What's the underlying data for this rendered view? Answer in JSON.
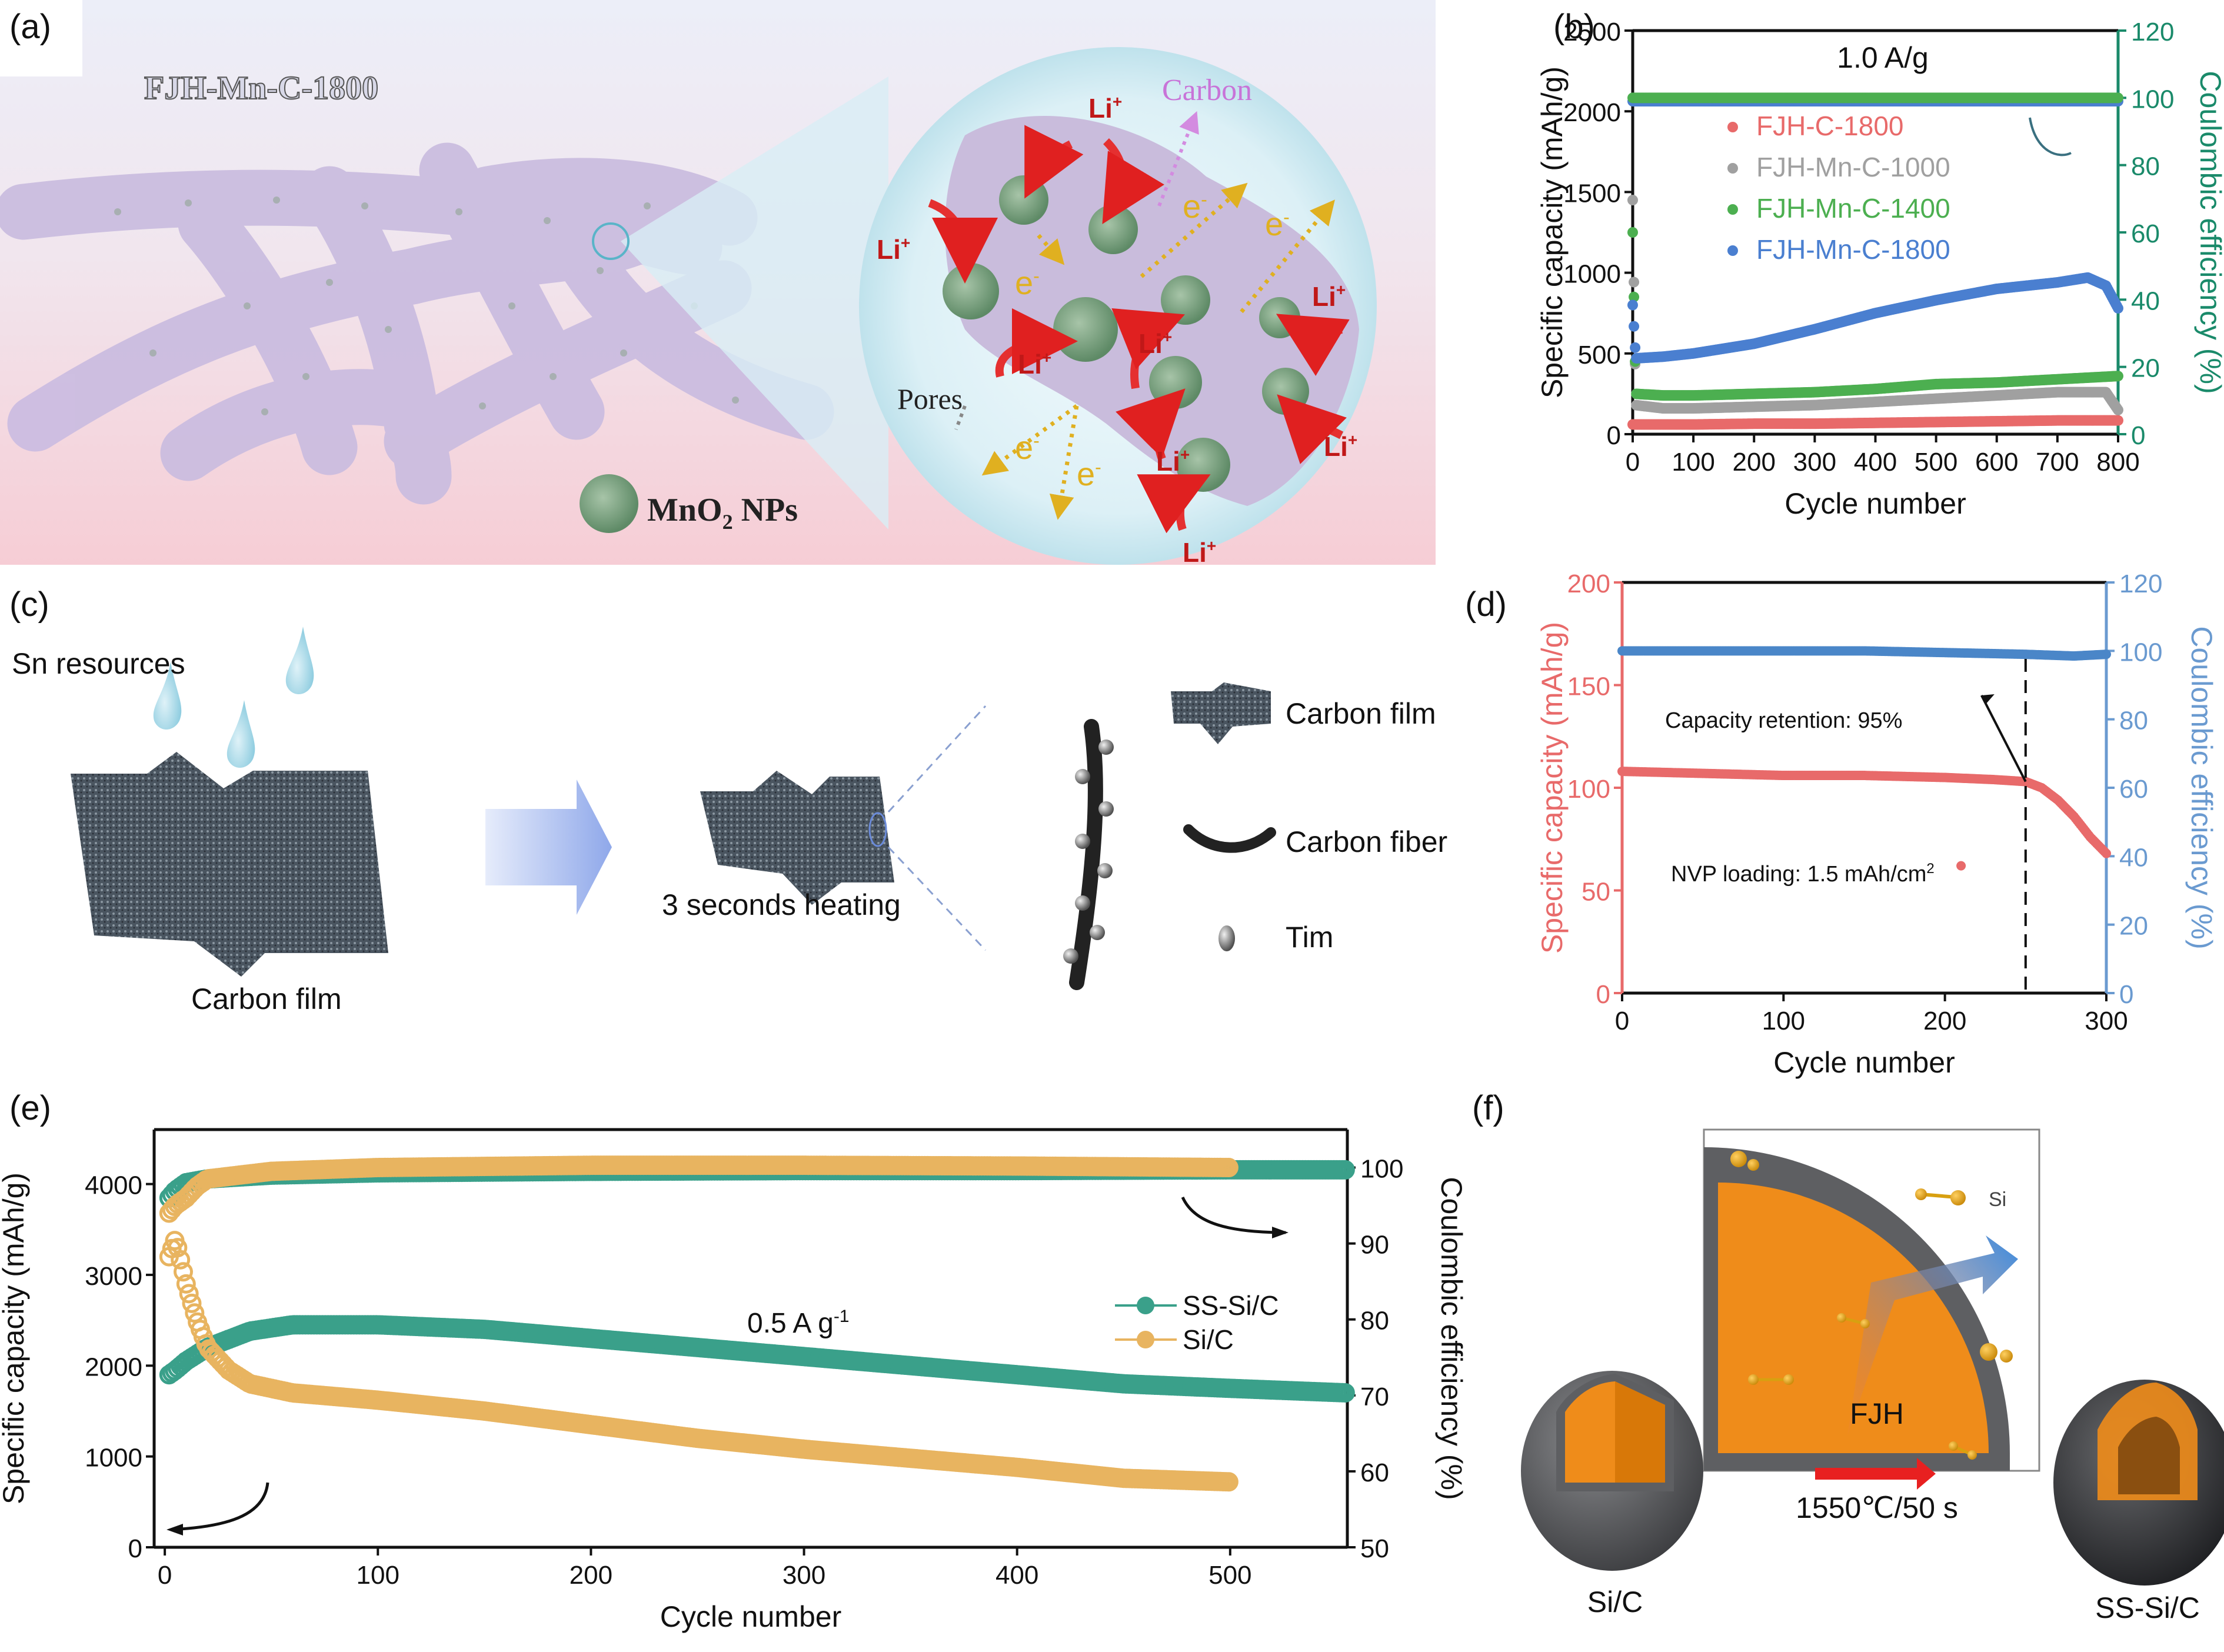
{
  "panels": {
    "a": {
      "label": "(a)",
      "title": "FJH-Mn-C-1800",
      "legend": "MnO",
      "legend_sub": "2",
      "legend_tail": " NPs",
      "inset_labels": {
        "carbon": "Carbon",
        "pores": "Pores",
        "li": "Li",
        "li_sup": "+",
        "e": "e",
        "e_sup": "-"
      },
      "colors": {
        "fiber": "#cdbfe2",
        "np": "#7fa585",
        "li_arrow": "#e02020",
        "e_arrow": "#e0b020",
        "bg_top": "#eef0f8",
        "bg_bottom": "#f7cfd6",
        "inset": "#d6eef4"
      }
    },
    "b": {
      "label": "(b)"
    },
    "c": {
      "label": "(c)",
      "sn_resources": "Sn resources",
      "carbon_film_bottom": "Carbon film",
      "heating": "3 seconds heating",
      "legend": [
        {
          "icon": "carbon-film",
          "text": "Carbon film"
        },
        {
          "icon": "carbon-fiber",
          "text": "Carbon fiber"
        },
        {
          "icon": "tin-particle",
          "text": "Tim"
        }
      ]
    },
    "d": {
      "label": "(d)"
    },
    "e": {
      "label": "(e)"
    },
    "f": {
      "label": "(f)",
      "si_label": "Si",
      "left_sphere": "Si/C",
      "right_sphere": "SS-Si/C",
      "arrow_top": "FJH",
      "arrow_bottom": "1550℃/50 s",
      "colors": {
        "core": "#f08c1a",
        "shell": "#5a5b5e",
        "arrow": "#e82020",
        "si": "#e8a818"
      }
    }
  },
  "chart_data": [
    {
      "id": "b",
      "type": "scatter",
      "title": "",
      "annotation": "1.0 A/g",
      "xlabel": "Cycle number",
      "ylabel": "Specific capacity (mAh/g)",
      "y2label": "Coulombic efficiency (%)",
      "xlim": [
        0,
        800
      ],
      "ylim": [
        0,
        2500
      ],
      "y2lim": [
        0,
        120
      ],
      "xticks": [
        0,
        100,
        200,
        300,
        400,
        500,
        600,
        700,
        800
      ],
      "yticks": [
        0,
        500,
        1000,
        1500,
        2000,
        2500
      ],
      "y2ticks": [
        0,
        20,
        40,
        60,
        80,
        100,
        120
      ],
      "legend_position": "upper-left",
      "series": [
        {
          "name": "FJH-C-1800",
          "color": "#e86a6a",
          "axis": "left",
          "x": [
            0,
            100,
            200,
            300,
            400,
            500,
            600,
            700,
            800
          ],
          "y": [
            60,
            60,
            65,
            65,
            70,
            75,
            80,
            85,
            85
          ]
        },
        {
          "name": "FJH-Mn-C-1000",
          "color": "#a0a0a0",
          "axis": "left",
          "x": [
            0,
            5,
            50,
            100,
            200,
            300,
            400,
            500,
            600,
            700,
            780,
            800
          ],
          "y": [
            1450,
            180,
            160,
            160,
            170,
            180,
            200,
            220,
            240,
            260,
            260,
            150
          ]
        },
        {
          "name": "FJH-Mn-C-1400",
          "color": "#4caf50",
          "axis": "left",
          "x": [
            0,
            5,
            50,
            100,
            200,
            300,
            400,
            500,
            600,
            700,
            800
          ],
          "y": [
            1250,
            250,
            240,
            240,
            250,
            260,
            280,
            310,
            320,
            340,
            360
          ]
        },
        {
          "name": "FJH-Mn-C-1800",
          "color": "#4a7fd0",
          "axis": "left",
          "x": [
            0,
            5,
            50,
            100,
            200,
            300,
            400,
            500,
            600,
            700,
            750,
            780,
            800
          ],
          "y": [
            800,
            470,
            480,
            500,
            560,
            650,
            750,
            830,
            900,
            940,
            970,
            920,
            780
          ]
        },
        {
          "name": "CE FJH-Mn-C-1800",
          "color": "#4a7fd0",
          "axis": "right",
          "legend": false,
          "x": [
            0,
            100,
            200,
            300,
            400,
            500,
            600,
            700,
            800
          ],
          "y": [
            99,
            99,
            99,
            99,
            99,
            99,
            99,
            99,
            99
          ]
        },
        {
          "name": "CE FJH-Mn-C-1400",
          "color": "#4caf50",
          "axis": "right",
          "legend": false,
          "x": [
            0,
            100,
            200,
            300,
            400,
            500,
            600,
            700,
            800
          ],
          "y": [
            100,
            100,
            100,
            100,
            100,
            100,
            100,
            100,
            100
          ]
        }
      ]
    },
    {
      "id": "d",
      "type": "scatter",
      "title": "",
      "annotations": [
        "Capacity retention: 95%",
        "NVP loading: 1.5 mAh/cm",
        "2"
      ],
      "xlabel": "Cycle number",
      "ylabel": "Specific capacity (mAh/g)",
      "y2label": "Coulombic efficiency (%)",
      "xlim": [
        0,
        300
      ],
      "ylim": [
        0,
        200
      ],
      "y2lim": [
        0,
        120
      ],
      "xticks": [
        0,
        100,
        200,
        300
      ],
      "yticks": [
        0,
        50,
        100,
        150,
        200
      ],
      "y2ticks": [
        0,
        20,
        40,
        60,
        80,
        100,
        120
      ],
      "marker_line_x": 250,
      "series": [
        {
          "name": "Specific capacity",
          "color": "#e86a6a",
          "axis": "left",
          "x": [
            0,
            50,
            100,
            150,
            200,
            230,
            250,
            260,
            270,
            280,
            290,
            300
          ],
          "y": [
            108,
            107,
            106,
            106,
            105,
            104,
            103,
            100,
            94,
            86,
            76,
            68
          ]
        },
        {
          "name": "Coulombic efficiency",
          "color": "#4a86c8",
          "axis": "right",
          "x": [
            0,
            50,
            100,
            150,
            200,
            250,
            280,
            300
          ],
          "y": [
            100,
            100,
            100,
            100,
            99.5,
            99,
            98.5,
            99
          ]
        }
      ]
    },
    {
      "id": "e",
      "type": "scatter",
      "title": "",
      "annotation": "0.5 A g",
      "annotation_sup": "-1",
      "xlabel": "Cycle number",
      "ylabel": "Specific capacity (mAh/g)",
      "y2label": "Coulombic efficiency (%)",
      "xlim": [
        -5,
        555
      ],
      "ylim": [
        0,
        4600
      ],
      "y2lim": [
        50,
        105
      ],
      "xticks": [
        0,
        100,
        200,
        300,
        400,
        500
      ],
      "yticks": [
        0,
        1000,
        2000,
        3000,
        4000
      ],
      "y2ticks": [
        50,
        60,
        70,
        80,
        90,
        100
      ],
      "legend_position": "center-right",
      "series": [
        {
          "name": "SS-Si/C",
          "color": "#3aa08a",
          "axis": "left",
          "x": [
            2,
            5,
            10,
            20,
            40,
            60,
            100,
            150,
            200,
            250,
            300,
            350,
            400,
            450,
            500,
            555
          ],
          "y": [
            1900,
            1950,
            2050,
            2200,
            2380,
            2450,
            2450,
            2400,
            2300,
            2200,
            2100,
            2000,
            1900,
            1800,
            1750,
            1700
          ]
        },
        {
          "name": "Si/C",
          "color": "#e8b460",
          "axis": "left",
          "x": [
            2,
            5,
            10,
            15,
            20,
            30,
            40,
            60,
            100,
            150,
            200,
            250,
            300,
            350,
            400,
            450,
            500
          ],
          "y": [
            3200,
            3400,
            2900,
            2500,
            2200,
            1950,
            1800,
            1700,
            1620,
            1500,
            1350,
            1200,
            1080,
            980,
            880,
            760,
            720
          ]
        },
        {
          "name": "SS-Si/C CE",
          "color": "#3aa08a",
          "axis": "right",
          "legend": false,
          "x": [
            2,
            5,
            10,
            20,
            50,
            100,
            200,
            300,
            400,
            500,
            555
          ],
          "y": [
            96,
            97,
            98,
            98.5,
            99,
            99.3,
            99.5,
            99.6,
            99.6,
            99.7,
            99.7
          ]
        },
        {
          "name": "Si/C CE",
          "color": "#e8b460",
          "axis": "right",
          "legend": false,
          "x": [
            2,
            5,
            10,
            15,
            20,
            50,
            100,
            200,
            300,
            400,
            500
          ],
          "y": [
            94,
            95,
            96,
            97.5,
            98.5,
            99.5,
            100,
            100.3,
            100.3,
            100.2,
            100
          ]
        }
      ]
    }
  ]
}
